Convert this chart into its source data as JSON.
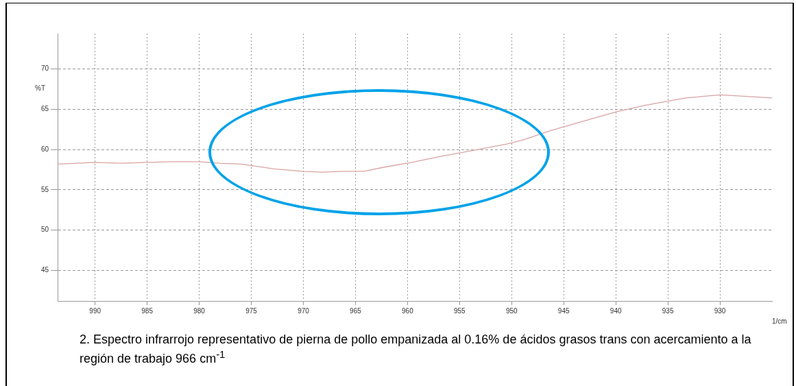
{
  "chart_data": {
    "type": "line",
    "xlabel": "1/cm",
    "ylabel": "%T",
    "annotations": [
      "2. Espectro infrarrojo representativo de pierna de pollo empanizada al 0.16% de ácidos grasos trans con acercamiento a la región de trabajo 966 cm$^{-1}$"
    ],
    "series": [
      {
        "color": "#d9a3a3",
        "x": [
          993.6,
          990,
          987.5,
          985,
          982.6,
          980,
          978,
          976,
          974.9,
          972.8,
          970.1,
          968.2,
          966.2,
          964.2,
          962.3,
          959.6,
          957,
          953.7,
          950.4,
          948.9,
          946.4,
          943.2,
          939.9,
          937.2,
          933.3,
          930,
          927.4,
          925
        ],
        "values": [
          58.2,
          58.4,
          58.3,
          58.4,
          58.5,
          58.5,
          58.3,
          58.2,
          58.0,
          57.6,
          57.3,
          57.2,
          57.3,
          57.3,
          57.8,
          58.4,
          59.1,
          59.9,
          60.7,
          61.2,
          62.3,
          63.5,
          64.7,
          65.5,
          66.4,
          66.8,
          66.6,
          66.4
        ]
      }
    ],
    "xlim": [
      993.6,
      925
    ],
    "xticks": [
      990,
      985,
      980,
      975,
      970,
      965,
      960,
      955,
      950,
      945,
      940,
      935,
      930
    ],
    "ylim": [
      41.2,
      74.4
    ],
    "yticks": [
      45,
      50,
      55,
      60,
      65,
      70
    ],
    "grid": true,
    "legend": false,
    "marker": "none",
    "line_style": "solid"
  }
}
